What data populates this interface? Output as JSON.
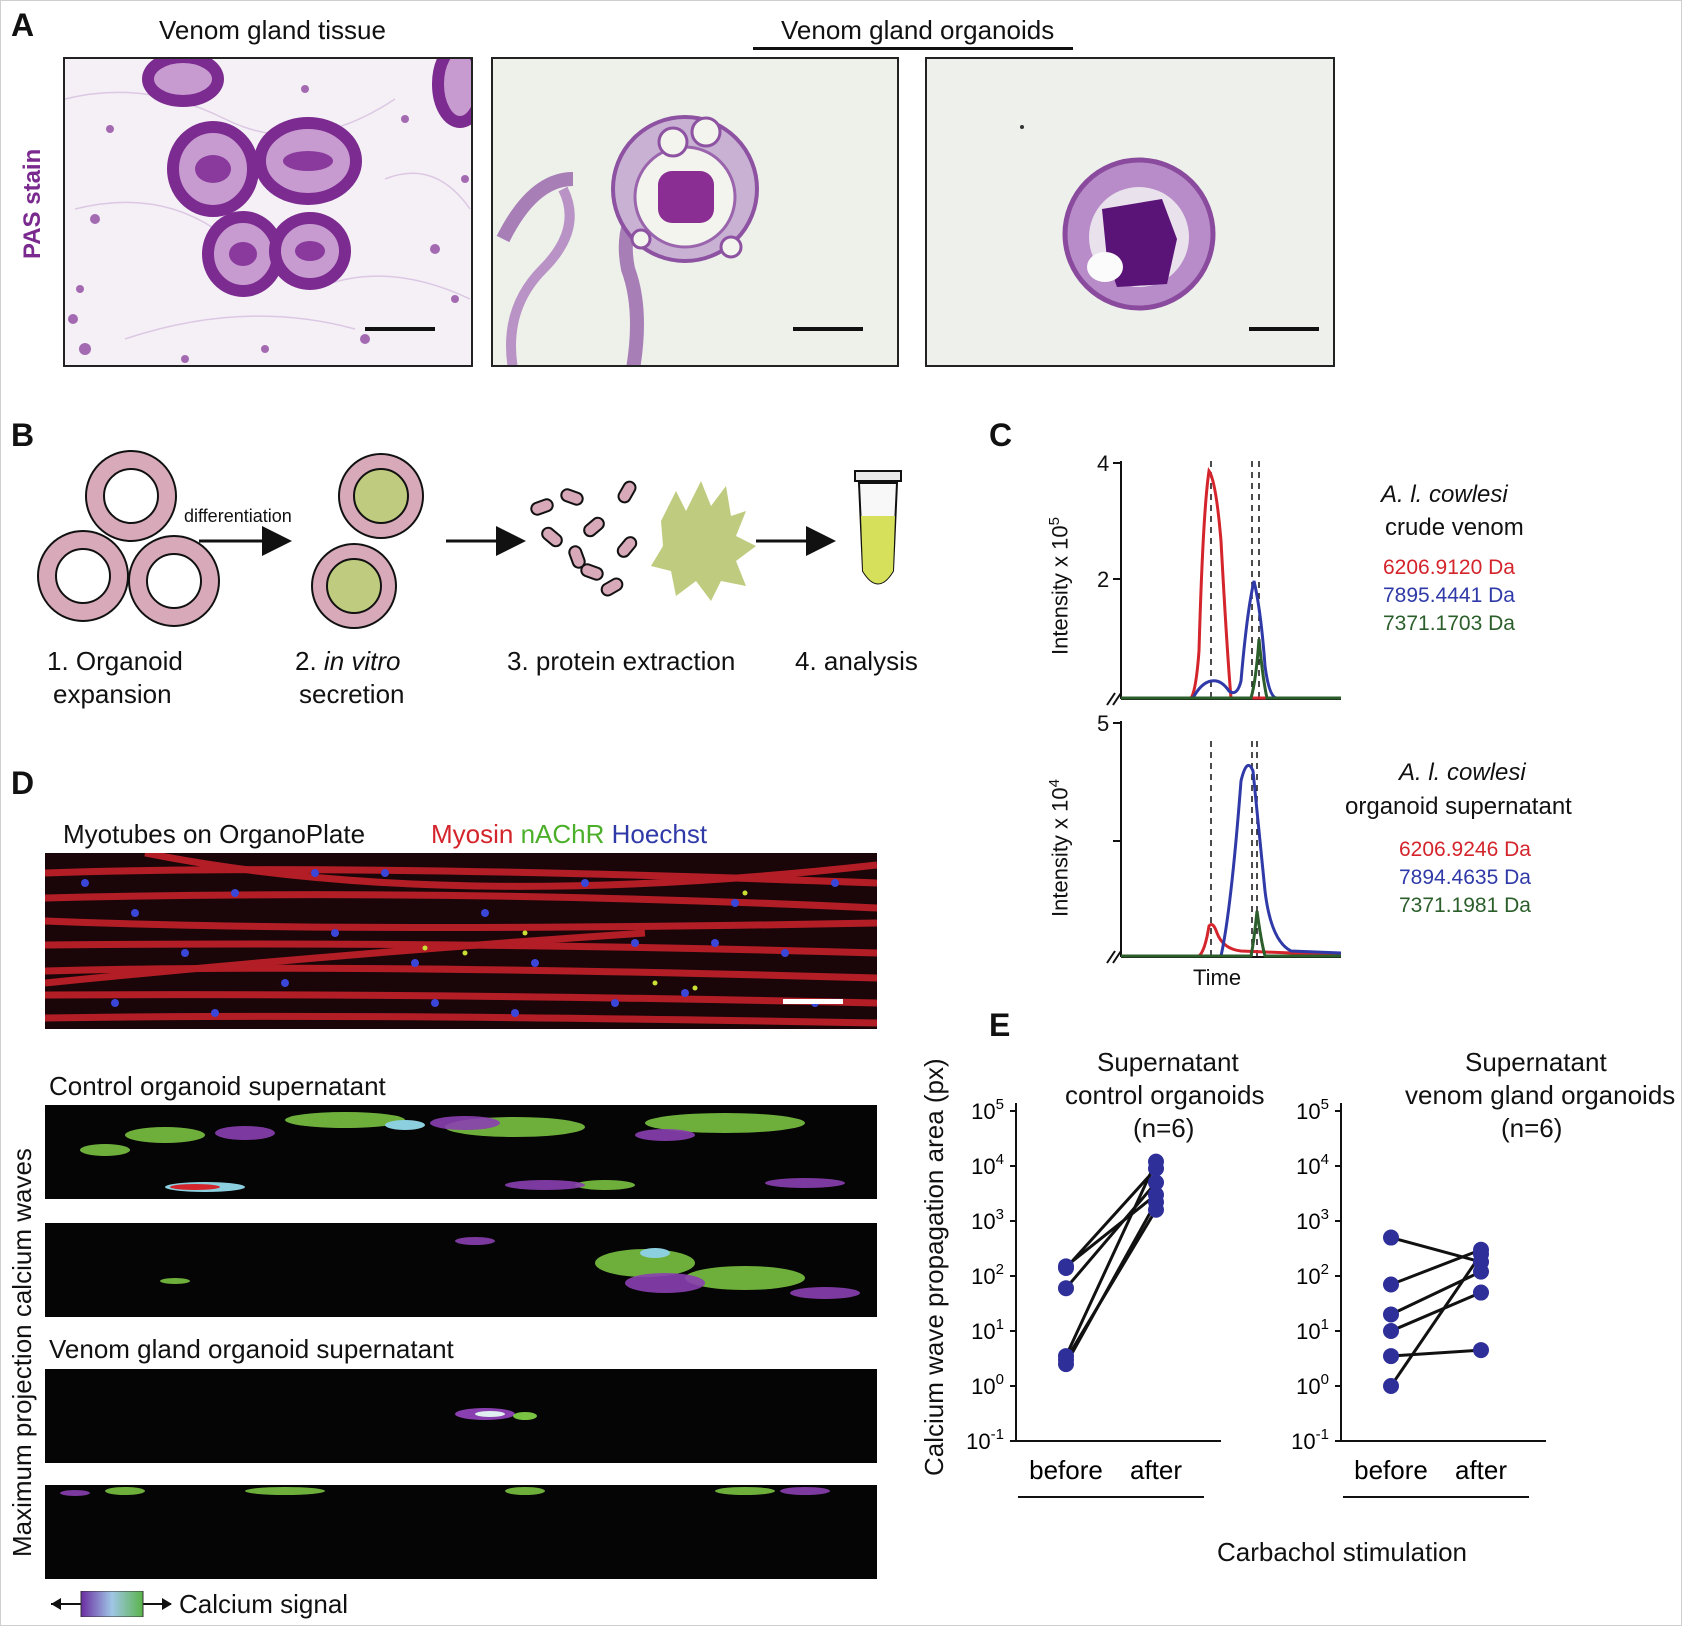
{
  "panel_labels": {
    "a": "A",
    "b": "B",
    "c": "C",
    "d": "D",
    "e": "E"
  },
  "panel_a": {
    "title_tissue": "Venom gland tissue",
    "title_organoids": "Venom gland organoids",
    "stain_label": "PAS stain",
    "stain_color": "#7a2a8e"
  },
  "panel_b": {
    "arrow_label": "differentiation",
    "step1_line1": "1. Organoid",
    "step1_line2": "expansion",
    "step2_prefix": "2. ",
    "step2_italic": "in vitro",
    "step2_line2": "secretion",
    "step3": "3. protein extraction",
    "step4": "4. analysis",
    "cell_color": "#d8aab9",
    "secretion_color": "#bfcb7e"
  },
  "panel_c": {
    "xlabel": "Time",
    "top": {
      "ylabel_prefix": "Intensity x 10",
      "ylabel_exp": "5",
      "ytick_max": "4",
      "ytick_mid": "2",
      "species": "A. l. cowlesi",
      "sample": "crude venom",
      "masses": [
        {
          "label": "6206.9120 Da",
          "color": "#d4242c"
        },
        {
          "label": "7895.4441 Da",
          "color": "#2f3aa8"
        },
        {
          "label": "7371.1703 Da",
          "color": "#2b5e2b"
        }
      ]
    },
    "bottom": {
      "ylabel_prefix": "Intensity x 10",
      "ylabel_exp": "4",
      "ytick_max": "5",
      "species": "A. l. cowlesi",
      "sample": "organoid supernatant",
      "masses": [
        {
          "label": "6206.9246 Da",
          "color": "#d4242c"
        },
        {
          "label": "7894.4635 Da",
          "color": "#2f3aa8"
        },
        {
          "label": "7371.1981 Da",
          "color": "#2b5e2b"
        }
      ]
    }
  },
  "panel_d": {
    "myotube_title": "Myotubes on OrganoPlate",
    "stain_myosin": "Myosin",
    "stain_nachr": "nAChR",
    "stain_hoechst": "Hoechst",
    "color_myosin": "#d4242c",
    "color_nachr": "#4caf2a",
    "color_hoechst": "#2f3aa8",
    "control_title": "Control organoid supernatant",
    "venom_title": "Venom gland organoid supernatant",
    "side_label": "Maximum projection calcium waves",
    "scale_label": "Calcium signal"
  },
  "chart_data": {
    "type": "scatter",
    "ylabel": "Calcium wave propagation area (px)",
    "xlabel": "Carbachol stimulation",
    "categories": [
      "before",
      "after"
    ],
    "yscale": "log",
    "ylim": [
      0.1,
      100000
    ],
    "yticks": [
      "10-1",
      "100",
      "101",
      "102",
      "103",
      "104",
      "105"
    ],
    "panels": [
      {
        "title_line1": "Supernatant",
        "title_line2": "control organoids",
        "title_line3": "(n=6)",
        "pairs": [
          [
            150,
            3000
          ],
          [
            60,
            5000
          ],
          [
            3.5,
            12000
          ],
          [
            3,
            1600
          ],
          [
            2.5,
            2200
          ],
          [
            140,
            9000
          ]
        ]
      },
      {
        "title_line1": "Supernatant",
        "title_line2": "venom gland organoids",
        "title_line3": "(n=6)",
        "pairs": [
          [
            500,
            180
          ],
          [
            70,
            300
          ],
          [
            20,
            120
          ],
          [
            10,
            50
          ],
          [
            3.5,
            4.5
          ],
          [
            1,
            250
          ]
        ]
      }
    ],
    "point_color": "#2f2f9a"
  }
}
